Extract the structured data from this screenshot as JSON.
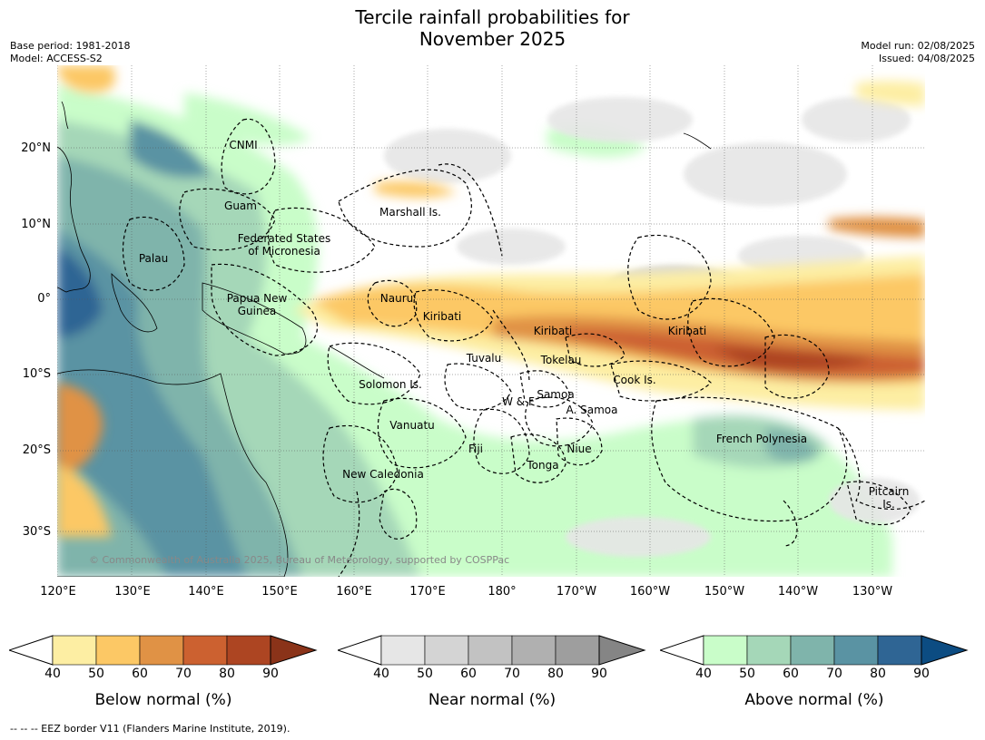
{
  "title_line1": "Tercile rainfall probabilities for",
  "title_line2": "November 2025",
  "base_period": "Base period: 1981-2018",
  "model": "Model: ACCESS-S2",
  "model_run": "Model run: 02/08/2025",
  "issued": "Issued: 04/08/2025",
  "latitude_labels": [
    "20°N",
    "10°N",
    "0°",
    "10°S",
    "20°S",
    "30°S"
  ],
  "longitude_labels": [
    "120°E",
    "130°E",
    "140°E",
    "150°E",
    "160°E",
    "170°E",
    "180°",
    "170°W",
    "160°W",
    "150°W",
    "140°W",
    "130°W"
  ],
  "places": [
    "CNMI",
    "Guam",
    "Marshall Is.",
    "Federated States\nof Micronesia",
    "Palau",
    "Papua New\nGuinea",
    "Nauru",
    "Kiribati",
    "Kiribati",
    "Kiribati",
    "Tuvalu",
    "Tokelau",
    "Solomon Is.",
    "Samoa",
    "W & F",
    "A. Samoa",
    "Cook Is.",
    "Vanuatu",
    "Fiji",
    "Niue",
    "Tonga",
    "New Caledonia",
    "French Polynesia",
    "Pitcairn\nIs."
  ],
  "copyright": "© Commonwealth of Australia 2025, Bureau of Meteorology, supported by COSPPac",
  "colorbars": [
    {
      "label": "Below normal (%)",
      "ticks": [
        "40",
        "50",
        "60",
        "70",
        "80",
        "90"
      ],
      "colors": [
        "#ffffff",
        "#fdeea3",
        "#fcc865",
        "#e09245",
        "#cc6130",
        "#ad4522",
        "#8a3319"
      ]
    },
    {
      "label": "Near normal (%)",
      "ticks": [
        "40",
        "50",
        "60",
        "70",
        "80",
        "90"
      ],
      "colors": [
        "#ffffff",
        "#e6e6e6",
        "#d4d4d4",
        "#c2c2c2",
        "#b0b0b0",
        "#9e9e9e",
        "#858585"
      ]
    },
    {
      "label": "Above normal (%)",
      "ticks": [
        "40",
        "50",
        "60",
        "70",
        "80",
        "90"
      ],
      "colors": [
        "#ffffff",
        "#c9fdc9",
        "#a5d7b8",
        "#7fb4ab",
        "#5a93a3",
        "#2f6594",
        "#0c4c82"
      ]
    }
  ],
  "footer": "--  --  -- EEZ border V11 (Flanders Marine Institute, 2019)."
}
